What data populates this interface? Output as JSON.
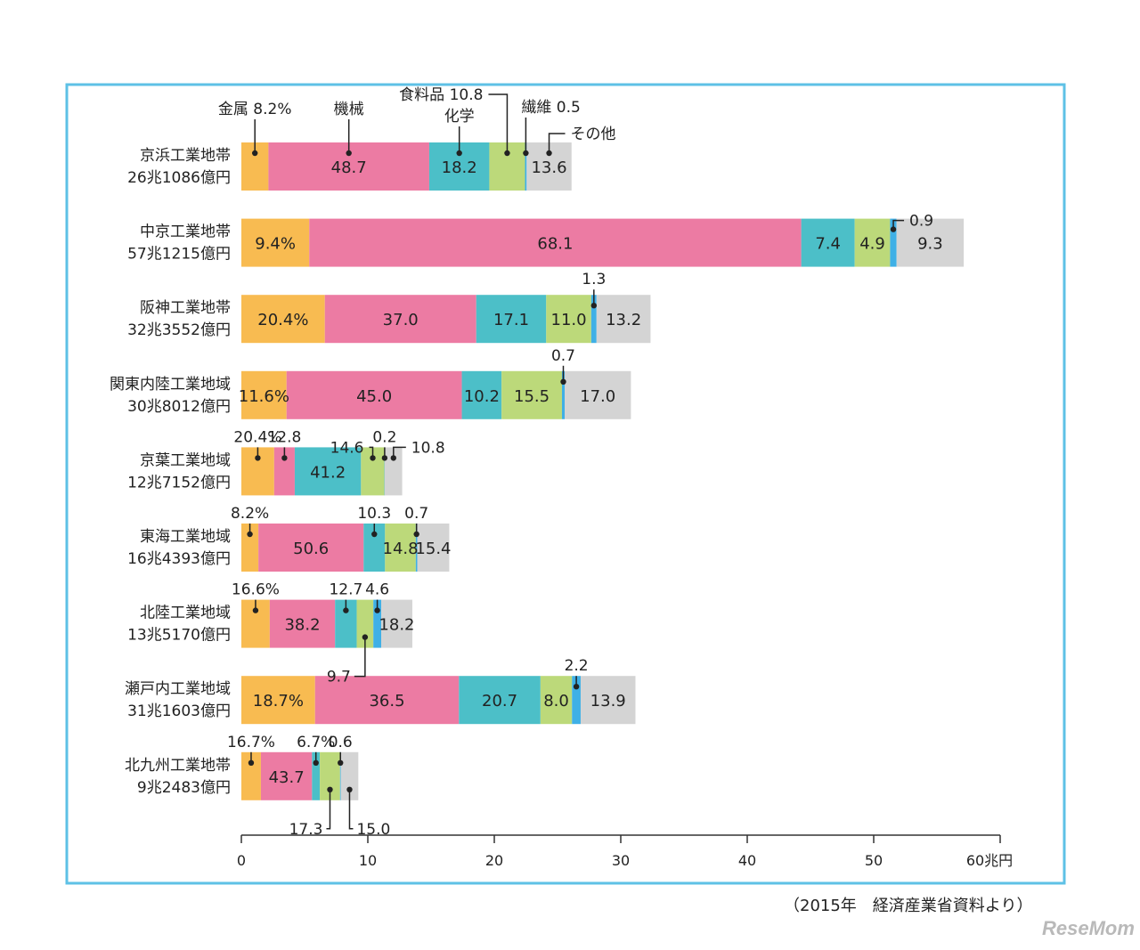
{
  "source": "（2015年　経済産業省資料より）",
  "logo": "ReseMom",
  "chart_data": {
    "type": "bar",
    "orientation": "horizontal-stacked",
    "categories": [
      "金属",
      "機械",
      "化学",
      "食料品",
      "繊維",
      "その他"
    ],
    "colors": [
      "#f8bb51",
      "#ec7ba3",
      "#4cbfc8",
      "#bcd97a",
      "#3fb0e6",
      "#d4d4d4"
    ],
    "xlim": [
      0,
      60
    ],
    "xticks": [
      "0",
      "10",
      "20",
      "30",
      "40",
      "50",
      "60兆円"
    ],
    "rows": [
      {
        "name": "京浜工業地帯",
        "total_label": "26兆1086億円",
        "total": 26.1086,
        "shares": [
          8.2,
          48.7,
          18.2,
          10.8,
          0.5,
          13.6
        ],
        "labels": [
          "",
          "48.7",
          "18.2",
          "",
          "",
          "13.6"
        ]
      },
      {
        "name": "中京工業地帯",
        "total_label": "57兆1215億円",
        "total": 57.1215,
        "shares": [
          9.4,
          68.1,
          7.4,
          4.9,
          0.9,
          9.3
        ],
        "labels": [
          "9.4%",
          "68.1",
          "7.4",
          "4.9",
          "",
          "9.3"
        ]
      },
      {
        "name": "阪神工業地帯",
        "total_label": "32兆3552億円",
        "total": 32.3552,
        "shares": [
          20.4,
          37.0,
          17.1,
          11.0,
          1.3,
          13.2
        ],
        "labels": [
          "20.4%",
          "37.0",
          "17.1",
          "11.0",
          "",
          "13.2"
        ]
      },
      {
        "name": "関東内陸工業地域",
        "total_label": "30兆8012億円",
        "total": 30.8012,
        "shares": [
          11.6,
          45.0,
          10.2,
          15.5,
          0.7,
          17.0
        ],
        "labels": [
          "11.6%",
          "45.0",
          "10.2",
          "15.5",
          "",
          "17.0"
        ]
      },
      {
        "name": "京葉工業地域",
        "total_label": "12兆7152億円",
        "total": 12.7152,
        "shares": [
          20.4,
          12.8,
          41.2,
          14.6,
          0.2,
          10.8
        ],
        "labels": [
          "",
          "",
          "41.2",
          "",
          "",
          ""
        ]
      },
      {
        "name": "東海工業地域",
        "total_label": "16兆4393億円",
        "total": 16.4393,
        "shares": [
          8.2,
          50.6,
          10.3,
          14.8,
          0.7,
          15.4
        ],
        "labels": [
          "",
          "50.6",
          "",
          "14.8",
          "",
          "15.4"
        ]
      },
      {
        "name": "北陸工業地域",
        "total_label": "13兆5170億円",
        "total": 13.517,
        "shares": [
          16.6,
          38.2,
          12.7,
          9.7,
          4.6,
          18.2
        ],
        "labels": [
          "",
          "38.2",
          "",
          "",
          "",
          "18.2"
        ]
      },
      {
        "name": "瀬戸内工業地域",
        "total_label": "31兆1603億円",
        "total": 31.1603,
        "shares": [
          18.7,
          36.5,
          20.7,
          8.0,
          2.2,
          13.9
        ],
        "labels": [
          "18.7%",
          "36.5",
          "20.7",
          "8.0",
          "",
          "13.9"
        ]
      },
      {
        "name": "北九州工業地帯",
        "total_label": "9兆2483億円",
        "total": 9.2483,
        "shares": [
          16.7,
          43.7,
          6.7,
          17.3,
          0.6,
          15.0
        ],
        "labels": [
          "",
          "43.7",
          "",
          "",
          "",
          ""
        ]
      }
    ],
    "callouts": [
      {
        "row": 0,
        "seg": 0,
        "text": "金属 8.2%"
      },
      {
        "row": 0,
        "seg": 1,
        "text": "機械"
      },
      {
        "row": 0,
        "seg": 2,
        "text": "化学"
      },
      {
        "row": 0,
        "seg": 3,
        "text": "食料品 10.8"
      },
      {
        "row": 0,
        "seg": 4,
        "text": "繊維 0.5"
      },
      {
        "row": 0,
        "seg": 5,
        "text": "その他"
      },
      {
        "row": 1,
        "seg": 4,
        "text": "0.9"
      },
      {
        "row": 2,
        "seg": 4,
        "text": "1.3"
      },
      {
        "row": 3,
        "seg": 4,
        "text": "0.7"
      },
      {
        "row": 4,
        "seg": 0,
        "text": "20.4%"
      },
      {
        "row": 4,
        "seg": 1,
        "text": "12.8"
      },
      {
        "row": 4,
        "seg": 3,
        "text": "14.6"
      },
      {
        "row": 4,
        "seg": 4,
        "text": "0.2"
      },
      {
        "row": 4,
        "seg": 5,
        "text": "10.8"
      },
      {
        "row": 5,
        "seg": 0,
        "text": "8.2%"
      },
      {
        "row": 5,
        "seg": 2,
        "text": "10.3"
      },
      {
        "row": 5,
        "seg": 4,
        "text": "0.7"
      },
      {
        "row": 6,
        "seg": 0,
        "text": "16.6%"
      },
      {
        "row": 6,
        "seg": 2,
        "text": "12.7"
      },
      {
        "row": 6,
        "seg": 4,
        "text": "4.6"
      },
      {
        "row": 6,
        "seg": 3,
        "text": "9.7"
      },
      {
        "row": 7,
        "seg": 4,
        "text": "2.2"
      },
      {
        "row": 8,
        "seg": 0,
        "text": "16.7%"
      },
      {
        "row": 8,
        "seg": 2,
        "text": "6.7%"
      },
      {
        "row": 8,
        "seg": 4,
        "text": "0.6"
      },
      {
        "row": 8,
        "seg": 3,
        "text": "17.3"
      },
      {
        "row": 8,
        "seg": 5,
        "text": "15.0"
      }
    ]
  }
}
